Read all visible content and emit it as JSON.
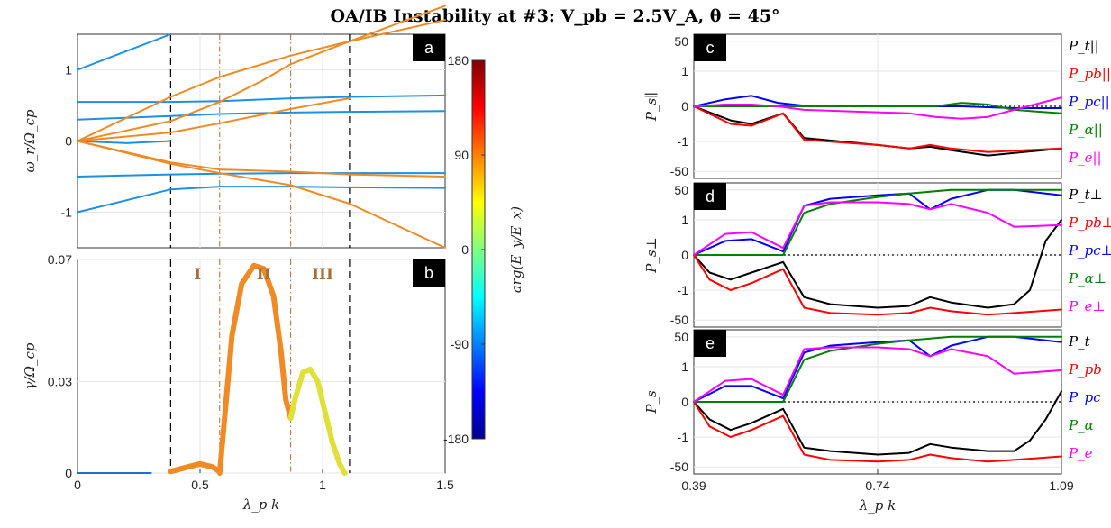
{
  "figure": {
    "title": "OA/IB Instability at #3: V_pb = 2.5V_A, θ = 45°"
  },
  "colorbar": {
    "label": "arg(E_y/E_x)",
    "ticks": [
      "180",
      "90",
      "0",
      "-90",
      "-180"
    ],
    "range": [
      -180,
      180
    ],
    "colors": [
      "#00008f",
      "#0000ff",
      "#0080ff",
      "#00ffff",
      "#80ff80",
      "#ffff00",
      "#ff8000",
      "#ff0000",
      "#800000"
    ]
  },
  "chart_data": [
    {
      "id": "a",
      "type": "line",
      "tag": "a",
      "ylabel": "ω_r/Ω_cp",
      "xlim": [
        0,
        1.5
      ],
      "ylim": [
        -1.5,
        1.5
      ],
      "yticks": [
        "1",
        "0",
        "-1"
      ],
      "xticks": [],
      "vlines_dashed": [
        0.38,
        1.11
      ],
      "vlines_dashdot": [
        0.58,
        0.87
      ],
      "series": [
        {
          "color": "#1e90e0",
          "x": [
            0,
            0.38
          ],
          "y": [
            1.0,
            1.5
          ]
        },
        {
          "color": "#1e90e0",
          "x": [
            0,
            0.38,
            0.58,
            0.87,
            1.11,
            1.5
          ],
          "y": [
            0.55,
            0.55,
            0.56,
            0.6,
            0.62,
            0.64
          ]
        },
        {
          "color": "#1e90e0",
          "x": [
            0,
            0.38,
            0.58,
            0.87,
            1.11,
            1.5
          ],
          "y": [
            0.3,
            0.35,
            0.38,
            0.4,
            0.41,
            0.42
          ]
        },
        {
          "color": "#1e90e0",
          "x": [
            0,
            0.2,
            0.38
          ],
          "y": [
            0.0,
            -0.03,
            0.0
          ]
        },
        {
          "color": "#1e90e0",
          "x": [
            0,
            0.38,
            0.58,
            0.87,
            1.11,
            1.5
          ],
          "y": [
            -0.5,
            -0.47,
            -0.46,
            -0.45,
            -0.45,
            -0.45
          ]
        },
        {
          "color": "#1e90e0",
          "x": [
            0,
            0.38,
            0.58,
            0.87,
            1.11,
            1.5
          ],
          "y": [
            -1.0,
            -0.68,
            -0.64,
            -0.64,
            -0.65,
            -0.66
          ]
        },
        {
          "color": "#f08a24",
          "x": [
            0,
            0.38,
            0.58,
            0.87,
            1.11,
            1.5
          ],
          "y": [
            0.0,
            0.62,
            0.9,
            1.2,
            1.4,
            1.7
          ]
        },
        {
          "color": "#f08a24",
          "x": [
            0,
            0.38,
            0.58,
            0.75,
            0.87,
            1.11,
            1.5
          ],
          "y": [
            0.0,
            0.28,
            0.55,
            0.84,
            1.08,
            1.4,
            1.9
          ]
        },
        {
          "color": "#f08a24",
          "x": [
            0,
            0.38,
            0.58,
            0.87,
            1.11
          ],
          "y": [
            0.0,
            0.12,
            0.25,
            0.45,
            0.6
          ]
        },
        {
          "color": "#f08a24",
          "x": [
            0,
            0.38,
            0.58,
            0.87,
            1.11,
            1.5
          ],
          "y": [
            0.0,
            -0.3,
            -0.4,
            -0.43,
            -0.47,
            -0.5
          ]
        },
        {
          "color": "#f08a24",
          "x": [
            0,
            0.38,
            0.58,
            0.87,
            1.11,
            1.5
          ],
          "y": [
            0.0,
            -0.32,
            -0.45,
            -0.62,
            -0.88,
            -1.5
          ]
        }
      ]
    },
    {
      "id": "b",
      "type": "line",
      "tag": "b",
      "ylabel": "γ/Ω_cp",
      "xlabel": "λ_p k",
      "xlim": [
        0,
        1.5
      ],
      "ylim": [
        0,
        0.07
      ],
      "yticks": [
        "0.07",
        "0.03",
        "0"
      ],
      "xticks": [
        "0",
        "0.5",
        "1",
        "1.5"
      ],
      "vlines_dashed": [
        0.38,
        1.11
      ],
      "vlines_dashdot": [
        0.58,
        0.87
      ],
      "regions": [
        "I",
        "II",
        "III"
      ],
      "series": [
        {
          "color": "#1e6fd0",
          "x": [
            0,
            0.3
          ],
          "y": [
            0,
            0
          ]
        },
        {
          "color": "#f08a24",
          "x": [
            0.38,
            0.45,
            0.5,
            0.55,
            0.58
          ],
          "y": [
            0.0005,
            0.002,
            0.003,
            0.002,
            0.0005
          ]
        },
        {
          "color": "#f08a24",
          "x": [
            0.58,
            0.6,
            0.63,
            0.67,
            0.72,
            0.76,
            0.8,
            0.83,
            0.85,
            0.87
          ],
          "y": [
            0.0,
            0.018,
            0.045,
            0.062,
            0.068,
            0.067,
            0.058,
            0.04,
            0.024,
            0.018
          ]
        },
        {
          "color": "#e0e03a",
          "x": [
            0.87,
            0.89,
            0.92,
            0.95,
            0.98,
            1.01,
            1.04,
            1.07,
            1.09
          ],
          "y": [
            0.018,
            0.025,
            0.033,
            0.034,
            0.03,
            0.02,
            0.01,
            0.003,
            0.0
          ]
        }
      ]
    },
    {
      "id": "c",
      "type": "line",
      "tag": "c",
      "ylabel": "P_s∥",
      "xlim": [
        0.39,
        1.09
      ],
      "yticks": [
        "50",
        "1",
        "0",
        "-1",
        "-50"
      ],
      "xticks": [],
      "legend": [
        "P_t||",
        "P_pb||",
        "P_pc||",
        "P_α||",
        "P_e||"
      ],
      "legend_colors": [
        "#000000",
        "#ff0000",
        "#0000ff",
        "#008000",
        "#ff00ff"
      ],
      "series": [
        {
          "name": "P_t||",
          "color": "#000000",
          "x": [
            0.39,
            0.46,
            0.5,
            0.56,
            0.6,
            0.74,
            0.8,
            0.84,
            0.88,
            0.95,
            1.09
          ],
          "y": [
            0,
            -0.4,
            -0.5,
            -0.2,
            -0.9,
            -1.1,
            -1.2,
            -1.15,
            -1.25,
            -1.4,
            -1.2
          ]
        },
        {
          "name": "P_pb||",
          "color": "#ff0000",
          "x": [
            0.39,
            0.46,
            0.5,
            0.56,
            0.6,
            0.74,
            0.8,
            0.84,
            0.88,
            0.95,
            1.09
          ],
          "y": [
            0,
            -0.5,
            -0.55,
            -0.2,
            -0.95,
            -1.1,
            -1.2,
            -1.1,
            -1.2,
            -1.3,
            -1.2
          ]
        },
        {
          "name": "P_pc||",
          "color": "#0000ff",
          "x": [
            0.39,
            0.45,
            0.5,
            0.55,
            0.6,
            0.74,
            0.8,
            0.9,
            1.0,
            1.09
          ],
          "y": [
            0,
            0.2,
            0.3,
            0.1,
            0.02,
            0,
            0,
            0,
            -0.05,
            -0.05
          ]
        },
        {
          "name": "P_α||",
          "color": "#008000",
          "x": [
            0.39,
            0.5,
            0.6,
            0.74,
            0.8,
            0.85,
            0.9,
            0.95,
            1.0,
            1.09
          ],
          "y": [
            0,
            0,
            0,
            0,
            0,
            0,
            0.1,
            0.05,
            -0.1,
            -0.2
          ]
        },
        {
          "name": "P_e||",
          "color": "#ff00ff",
          "x": [
            0.39,
            0.45,
            0.5,
            0.55,
            0.6,
            0.7,
            0.8,
            0.85,
            0.9,
            0.95,
            1.0,
            1.09
          ],
          "y": [
            0,
            0.05,
            0.05,
            0,
            -0.1,
            -0.15,
            -0.2,
            -0.3,
            -0.35,
            -0.3,
            -0.1,
            0.25
          ]
        }
      ]
    },
    {
      "id": "d",
      "type": "line",
      "tag": "d",
      "ylabel": "P_s⊥",
      "xlim": [
        0.39,
        1.09
      ],
      "yticks": [
        "50",
        "1",
        "0",
        "-1",
        "-50"
      ],
      "xticks": [],
      "legend": [
        "P_t⊥",
        "P_pb⊥",
        "P_pc⊥",
        "P_α⊥",
        "P_e⊥"
      ],
      "legend_colors": [
        "#000000",
        "#ff0000",
        "#0000ff",
        "#008000",
        "#ff00ff"
      ],
      "series": [
        {
          "name": "P_t⊥",
          "color": "#000000",
          "x": [
            0.39,
            0.42,
            0.46,
            0.5,
            0.56,
            0.6,
            0.65,
            0.74,
            0.8,
            0.84,
            0.88,
            0.95,
            1.0,
            1.03,
            1.06,
            1.09
          ],
          "y": [
            0,
            -0.5,
            -0.7,
            -0.5,
            -0.2,
            -1.2,
            -1.4,
            -1.5,
            -1.45,
            -1.2,
            -1.35,
            -1.5,
            -1.4,
            -1.0,
            0.4,
            1.0
          ]
        },
        {
          "name": "P_pb⊥",
          "color": "#ff0000",
          "x": [
            0.39,
            0.42,
            0.46,
            0.5,
            0.56,
            0.6,
            0.65,
            0.74,
            0.8,
            0.84,
            0.88,
            0.95,
            1.0,
            1.09
          ],
          "y": [
            0,
            -0.7,
            -1.0,
            -0.8,
            -0.4,
            -1.5,
            -1.65,
            -1.7,
            -1.65,
            -1.5,
            -1.6,
            -1.7,
            -1.65,
            -1.55
          ]
        },
        {
          "name": "P_pc⊥",
          "color": "#0000ff",
          "x": [
            0.39,
            0.45,
            0.5,
            0.56,
            0.6,
            0.65,
            0.74,
            0.8,
            0.84,
            0.88,
            0.95,
            1.0,
            1.09
          ],
          "y": [
            0,
            0.4,
            0.45,
            0.1,
            1.4,
            1.6,
            1.7,
            1.75,
            1.3,
            1.6,
            1.85,
            1.85,
            1.7
          ]
        },
        {
          "name": "P_α⊥",
          "color": "#008000",
          "x": [
            0.39,
            0.5,
            0.56,
            0.6,
            0.65,
            0.74,
            0.8,
            0.84,
            0.88,
            0.95,
            1.0,
            1.09
          ],
          "y": [
            0,
            0,
            0,
            1.2,
            1.45,
            1.65,
            1.75,
            1.8,
            1.85,
            1.85,
            1.85,
            1.85
          ]
        },
        {
          "name": "P_e⊥",
          "color": "#ff00ff",
          "x": [
            0.39,
            0.45,
            0.5,
            0.56,
            0.6,
            0.65,
            0.74,
            0.8,
            0.84,
            0.88,
            0.95,
            1.0,
            1.09
          ],
          "y": [
            0,
            0.6,
            0.65,
            0.2,
            1.4,
            1.5,
            1.5,
            1.45,
            1.3,
            1.45,
            1.2,
            0.8,
            0.85
          ]
        }
      ]
    },
    {
      "id": "e",
      "type": "line",
      "tag": "e",
      "ylabel": "P_s",
      "xlabel": "λ_p k",
      "xlim": [
        0.39,
        1.09
      ],
      "yticks": [
        "50",
        "1",
        "0",
        "-1",
        "-50"
      ],
      "xticks": [
        "0.39",
        "0.74",
        "1.09"
      ],
      "legend": [
        "P_t",
        "P_pb",
        "P_pc",
        "P_α",
        "P_e"
      ],
      "legend_colors": [
        "#000000",
        "#ff0000",
        "#0000ff",
        "#008000",
        "#ff00ff"
      ],
      "series": [
        {
          "name": "P_t",
          "color": "#000000",
          "x": [
            0.39,
            0.42,
            0.46,
            0.5,
            0.56,
            0.6,
            0.65,
            0.74,
            0.8,
            0.84,
            0.88,
            0.95,
            1.0,
            1.03,
            1.06,
            1.09
          ],
          "y": [
            0,
            -0.5,
            -0.8,
            -0.6,
            -0.2,
            -1.3,
            -1.4,
            -1.5,
            -1.45,
            -1.2,
            -1.3,
            -1.4,
            -1.4,
            -1.1,
            -0.5,
            0.3
          ]
        },
        {
          "name": "P_pb",
          "color": "#ff0000",
          "x": [
            0.39,
            0.42,
            0.46,
            0.5,
            0.56,
            0.6,
            0.65,
            0.74,
            0.8,
            0.84,
            0.88,
            0.95,
            1.0,
            1.09
          ],
          "y": [
            0,
            -0.7,
            -1.0,
            -0.8,
            -0.4,
            -1.5,
            -1.65,
            -1.7,
            -1.65,
            -1.5,
            -1.6,
            -1.7,
            -1.65,
            -1.55
          ]
        },
        {
          "name": "P_pc",
          "color": "#0000ff",
          "x": [
            0.39,
            0.45,
            0.5,
            0.56,
            0.6,
            0.65,
            0.74,
            0.8,
            0.84,
            0.88,
            0.95,
            1.0,
            1.09
          ],
          "y": [
            0,
            0.45,
            0.45,
            0.1,
            1.4,
            1.6,
            1.7,
            1.75,
            1.3,
            1.6,
            1.85,
            1.85,
            1.7
          ]
        },
        {
          "name": "P_α",
          "color": "#008000",
          "x": [
            0.39,
            0.5,
            0.56,
            0.6,
            0.65,
            0.74,
            0.8,
            0.84,
            0.88,
            0.95,
            1.0,
            1.09
          ],
          "y": [
            0,
            0,
            0,
            1.2,
            1.45,
            1.65,
            1.75,
            1.8,
            1.85,
            1.85,
            1.85,
            1.85
          ]
        },
        {
          "name": "P_e",
          "color": "#ff00ff",
          "x": [
            0.39,
            0.45,
            0.5,
            0.56,
            0.6,
            0.65,
            0.74,
            0.8,
            0.84,
            0.88,
            0.95,
            1.0,
            1.09
          ],
          "y": [
            0,
            0.6,
            0.65,
            0.2,
            1.5,
            1.55,
            1.55,
            1.5,
            1.3,
            1.5,
            1.3,
            0.8,
            0.9
          ]
        }
      ]
    }
  ]
}
